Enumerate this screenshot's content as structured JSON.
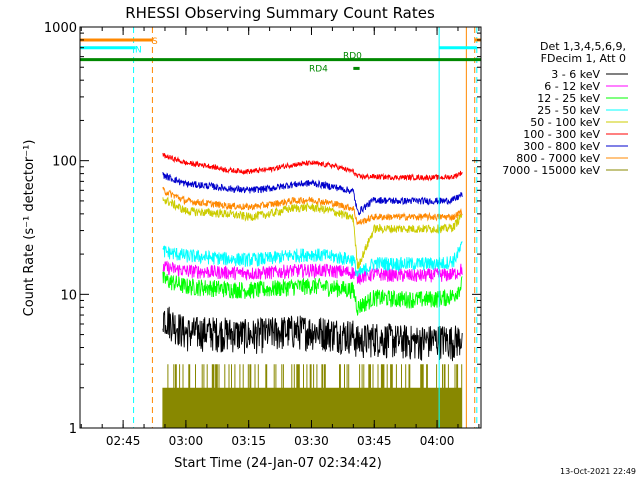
{
  "chart_data": {
    "type": "line",
    "title": "RHESSI Observing Summary Count Rates",
    "xlabel": "Start Time (24-Jan-07 02:34:42)",
    "ylabel": "Count Rate (s⁻¹ detector⁻¹)",
    "yscale": "log",
    "ylim": [
      1,
      1000
    ],
    "xlim": [
      "02:34:42",
      "04:10:30"
    ],
    "x_ticks": [
      "02:45",
      "03:00",
      "03:15",
      "03:30",
      "03:45",
      "04:00"
    ],
    "y_ticks": [
      "1",
      "10",
      "100",
      "1000"
    ],
    "legend": {
      "header": [
        "Det 1,3,4,5,6,9,",
        "FDecim 1, Att 0"
      ],
      "position": "right",
      "entries": [
        {
          "label": "3 - 6 keV",
          "color": "#000000"
        },
        {
          "label": "6 - 12 keV",
          "color": "#ff00ff"
        },
        {
          "label": "12 - 25 keV",
          "color": "#00ff00"
        },
        {
          "label": "25 - 50 keV",
          "color": "#00ffff"
        },
        {
          "label": "50 - 100 keV",
          "color": "#cccc00"
        },
        {
          "label": "100 - 300 keV",
          "color": "#ff0000"
        },
        {
          "label": "300 - 800 keV",
          "color": "#0000cc"
        },
        {
          "label": "800 - 7000 keV",
          "color": "#ff8800"
        },
        {
          "label": "7000 - 15000 keV",
          "color": "#888800"
        }
      ]
    },
    "times": [
      "02:54:30",
      "03:00",
      "03:05",
      "03:10",
      "03:15",
      "03:20",
      "03:25",
      "03:30",
      "03:35",
      "03:40",
      "03:41",
      "03:45",
      "03:50",
      "03:55",
      "04:00",
      "04:02",
      "04:04",
      "04:06"
    ],
    "series": [
      {
        "name": "3 - 6 keV",
        "color": "#000000",
        "values": [
          7,
          5.2,
          5.3,
          5.2,
          5,
          5.2,
          5.4,
          5.4,
          5.2,
          5,
          4.5,
          4.8,
          4.6,
          4.5,
          4.6,
          4.6,
          4.5,
          4.8
        ],
        "noise": 0.12
      },
      {
        "name": "6 - 12 keV",
        "color": "#ff00ff",
        "values": [
          16,
          15,
          14.8,
          14.6,
          14.4,
          14.6,
          15,
          15.2,
          15,
          14.6,
          13.5,
          14.2,
          14.0,
          13.8,
          14.0,
          14.0,
          14.2,
          15.5
        ],
        "noise": 0.04
      },
      {
        "name": "12 - 25 keV",
        "color": "#00ff00",
        "values": [
          13,
          11.5,
          11.3,
          11,
          10.8,
          11,
          11.4,
          11.6,
          11.3,
          10.8,
          8,
          9.5,
          9.3,
          9.2,
          9.3,
          9.5,
          9.8,
          12
        ],
        "noise": 0.05
      },
      {
        "name": "25 - 50 keV",
        "color": "#00ffff",
        "values": [
          21,
          19.5,
          19,
          18.5,
          18.2,
          18.6,
          19.6,
          20,
          19.2,
          18.2,
          14,
          17.2,
          17,
          17,
          17,
          17.2,
          18,
          23
        ],
        "noise": 0.04
      },
      {
        "name": "50 - 100 keV",
        "color": "#cccc00",
        "values": [
          52,
          42,
          41,
          40,
          38,
          40,
          44,
          45,
          42,
          37,
          16,
          31,
          31,
          31,
          31,
          31,
          32,
          40
        ],
        "noise": 0.025
      },
      {
        "name": "100 - 300 keV",
        "color": "#ff0000",
        "values": [
          110,
          96,
          92,
          85,
          83,
          86,
          93,
          96,
          92,
          83,
          76,
          76,
          75,
          75,
          75,
          75,
          76,
          82
        ],
        "noise": 0.015
      },
      {
        "name": "300 - 800 keV",
        "color": "#0000cc",
        "values": [
          78,
          67,
          65,
          62,
          60,
          62,
          66,
          68,
          64,
          59,
          41,
          51,
          50,
          50,
          50,
          50,
          51,
          56
        ],
        "noise": 0.02
      },
      {
        "name": "800 - 7000 keV",
        "color": "#ff8800",
        "values": [
          60,
          50,
          48,
          46,
          45,
          47,
          50,
          51,
          48,
          44,
          34,
          38,
          38,
          38,
          38,
          38,
          38,
          42
        ],
        "noise": 0.02
      },
      {
        "name": "7000 - 15000 keV",
        "color": "#888800",
        "values": [
          1,
          1,
          1,
          1,
          1,
          1,
          1,
          1,
          1,
          1,
          1,
          1,
          1,
          1,
          1,
          1,
          1,
          1
        ],
        "noise": 0
      }
    ],
    "status_bars": [
      {
        "label": "S",
        "color": "#ff8800",
        "value": 800,
        "x_ranges": [
          [
            "02:34:42",
            "02:52:00"
          ],
          [
            "04:09:00",
            "04:10:30"
          ]
        ]
      },
      {
        "label": "N",
        "color": "#00ffff",
        "value": 700,
        "x_ranges": [
          [
            "02:34:42",
            "02:48:00"
          ],
          [
            "04:00:30",
            "04:09:30"
          ]
        ]
      },
      {
        "label": "RD0",
        "color": "#008800",
        "value": 570,
        "x_ranges": [
          [
            "02:34:42",
            "04:10:30"
          ]
        ]
      },
      {
        "label": "RD4",
        "color": "#008800",
        "value": 490,
        "x_ranges": [
          [
            "03:40:00",
            "03:41:30"
          ]
        ]
      }
    ],
    "vertical_markers": [
      {
        "time": "02:34:42",
        "color": "#00ffff",
        "style": "solid"
      },
      {
        "time": "02:47:30",
        "color": "#00ffff",
        "style": "dashed"
      },
      {
        "time": "02:52:00",
        "color": "#ff8800",
        "style": "dashed"
      },
      {
        "time": "04:00:30",
        "color": "#00ffff",
        "style": "solid"
      },
      {
        "time": "04:07:00",
        "color": "#ff8800",
        "style": "solid"
      },
      {
        "time": "04:09:00",
        "color": "#ff8800",
        "style": "dashed"
      },
      {
        "time": "04:09:30",
        "color": "#00ffff",
        "style": "dashed"
      }
    ]
  },
  "footer": {
    "timestamp": "13-Oct-2021 22:49"
  }
}
